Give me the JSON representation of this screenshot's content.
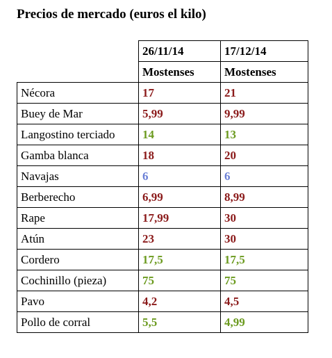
{
  "title": "Precios de mercado (euros el kilo)",
  "columns": [
    {
      "date": "26/11/14",
      "market": "Mostenses"
    },
    {
      "date": "17/12/14",
      "market": "Mostenses"
    }
  ],
  "colors": {
    "red": "#8b1a1a",
    "green": "#6b9a1e",
    "blue": "#6a7fd6"
  },
  "rows": [
    {
      "product": "Nécora",
      "v1": "17",
      "c1": "red",
      "v2": "21",
      "c2": "red"
    },
    {
      "product": "Buey de Mar",
      "v1": "5,99",
      "c1": "red",
      "v2": "9,99",
      "c2": "red"
    },
    {
      "product": "Langostino terciado",
      "v1": "14",
      "c1": "green",
      "v2": "13",
      "c2": "green"
    },
    {
      "product": "Gamba blanca",
      "v1": "18",
      "c1": "red",
      "v2": "20",
      "c2": "red"
    },
    {
      "product": "Navajas",
      "v1": "6",
      "c1": "blue",
      "v2": "6",
      "c2": "blue"
    },
    {
      "product": "Berberecho",
      "v1": "6,99",
      "c1": "red",
      "v2": "8,99",
      "c2": "red"
    },
    {
      "product": "Rape",
      "v1": "17,99",
      "c1": "red",
      "v2": "30",
      "c2": "red"
    },
    {
      "product": "Atún",
      "v1": "23",
      "c1": "red",
      "v2": "30",
      "c2": "red"
    },
    {
      "product": "Cordero",
      "v1": "17,5",
      "c1": "green",
      "v2": "17,5",
      "c2": "green"
    },
    {
      "product": "Cochinillo (pieza)",
      "v1": "75",
      "c1": "green",
      "v2": "75",
      "c2": "green"
    },
    {
      "product": "Pavo",
      "v1": "4,2",
      "c1": "red",
      "v2": "4,5",
      "c2": "red"
    },
    {
      "product": "Pollo de corral",
      "v1": "5,5",
      "c1": "green",
      "v2": "4,99",
      "c2": "green"
    }
  ]
}
